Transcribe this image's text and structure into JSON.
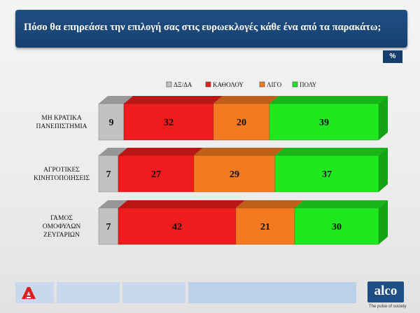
{
  "header": {
    "title": "Πόσο θα επηρεάσει την επιλογή σας στις ευρωεκλογές κάθε ένα από τα παρακάτω;",
    "unit_badge": "%"
  },
  "chart_data": {
    "type": "bar",
    "stacked": true,
    "orientation": "horizontal",
    "style": "3d",
    "categories": [
      [
        "ΜΗ ΚΡΑΤΙΚΑ",
        "ΠΑΝΕΠΙΣΤΗΜΙΑ"
      ],
      [
        "ΑΓΡΟΤΙΚΕΣ",
        "ΚΙΝΗΤΟΠΟΙΗΣΕΙΣ"
      ],
      [
        "ΓΑΜΟΣ",
        "ΟΜΟΦΥΛΩΝ",
        "ΖΕΥΓΑΡΙΩΝ"
      ]
    ],
    "series": [
      {
        "name": "ΔΞ/ΔΑ",
        "color": "#c2c2c2",
        "values": [
          9,
          7,
          7
        ]
      },
      {
        "name": "ΚΑΘΟΛΟΥ",
        "color": "#ee1c1c",
        "values": [
          32,
          27,
          42
        ]
      },
      {
        "name": "ΛΙΓΟ",
        "color": "#f47a1f",
        "values": [
          20,
          29,
          21
        ]
      },
      {
        "name": "ΠΟΛΥ",
        "color": "#1fe81f",
        "values": [
          39,
          37,
          30
        ]
      }
    ],
    "legend_position": "top",
    "grid": false
  },
  "footer": {
    "brand": "alco",
    "tagline": "The pulse of society"
  }
}
